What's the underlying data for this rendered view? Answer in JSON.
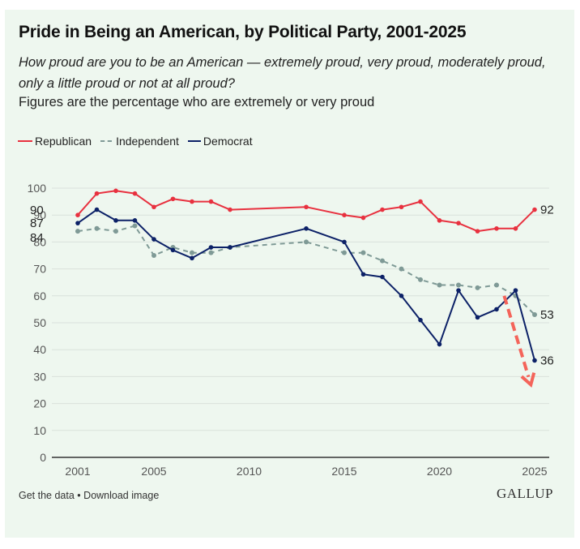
{
  "header": {
    "title": "Pride in Being an American, by Political Party, 2001-2025",
    "question": "How proud are you to be an American — extremely proud, very proud, moderately proud, only a little proud or not at all proud?",
    "note": "Figures are the percentage who are extremely or very proud"
  },
  "legend": {
    "items": [
      {
        "label": "Republican",
        "color": "#e8313f",
        "style": "solid"
      },
      {
        "label": "Independent",
        "color": "#7f9a96",
        "style": "dashed"
      },
      {
        "label": "Democrat",
        "color": "#0c2167",
        "style": "solid"
      }
    ]
  },
  "footer": {
    "get_data": "Get the data",
    "separator": "•",
    "download": "Download image",
    "logo": "GALLUP"
  },
  "colors": {
    "background": "#eef7ef",
    "grid": "#d9e2dc",
    "axis": "#333333",
    "annotation_arrow": "#f4645a"
  },
  "chart_data": {
    "type": "line",
    "title": "Pride in Being an American, by Political Party, 2001-2025",
    "xlabel": "",
    "ylabel": "",
    "xlim": [
      2001,
      2025
    ],
    "ylim": [
      0,
      100
    ],
    "grid": true,
    "legend_position": "top-left",
    "x_ticks": [
      2001,
      2005,
      2010,
      2015,
      2020,
      2025
    ],
    "y_ticks": [
      0,
      10,
      20,
      30,
      40,
      50,
      60,
      70,
      80,
      90,
      100
    ],
    "series": [
      {
        "name": "Republican",
        "color": "#e8313f",
        "dashed": false,
        "points": [
          [
            2001,
            90
          ],
          [
            2002,
            98
          ],
          [
            2003,
            99
          ],
          [
            2004,
            98
          ],
          [
            2005,
            93
          ],
          [
            2006,
            96
          ],
          [
            2007,
            95
          ],
          [
            2008,
            95
          ],
          [
            2009,
            92
          ],
          [
            2013,
            93
          ],
          [
            2015,
            90
          ],
          [
            2016,
            89
          ],
          [
            2017,
            92
          ],
          [
            2018,
            93
          ],
          [
            2019,
            95
          ],
          [
            2020,
            88
          ],
          [
            2021,
            87
          ],
          [
            2022,
            84
          ],
          [
            2023,
            85
          ],
          [
            2024,
            85
          ],
          [
            2025,
            92
          ]
        ],
        "start_label": "90",
        "end_label": "92"
      },
      {
        "name": "Independent",
        "color": "#7f9a96",
        "dashed": true,
        "points": [
          [
            2001,
            84
          ],
          [
            2002,
            85
          ],
          [
            2003,
            84
          ],
          [
            2004,
            86
          ],
          [
            2005,
            75
          ],
          [
            2006,
            78
          ],
          [
            2007,
            76
          ],
          [
            2008,
            76
          ],
          [
            2009,
            78
          ],
          [
            2013,
            80
          ],
          [
            2015,
            76
          ],
          [
            2016,
            76
          ],
          [
            2017,
            73
          ],
          [
            2018,
            70
          ],
          [
            2019,
            66
          ],
          [
            2020,
            64
          ],
          [
            2021,
            64
          ],
          [
            2022,
            63
          ],
          [
            2023,
            64
          ],
          [
            2024,
            60
          ],
          [
            2025,
            53
          ]
        ],
        "start_label": "84",
        "end_label": "53"
      },
      {
        "name": "Democrat",
        "color": "#0c2167",
        "dashed": false,
        "points": [
          [
            2001,
            87
          ],
          [
            2002,
            92
          ],
          [
            2003,
            88
          ],
          [
            2004,
            88
          ],
          [
            2005,
            81
          ],
          [
            2006,
            77
          ],
          [
            2007,
            74
          ],
          [
            2008,
            78
          ],
          [
            2009,
            78
          ],
          [
            2013,
            85
          ],
          [
            2015,
            80
          ],
          [
            2016,
            68
          ],
          [
            2017,
            67
          ],
          [
            2018,
            60
          ],
          [
            2019,
            51
          ],
          [
            2020,
            42
          ],
          [
            2021,
            62
          ],
          [
            2022,
            52
          ],
          [
            2023,
            55
          ],
          [
            2024,
            62
          ],
          [
            2025,
            36
          ]
        ],
        "start_label": "87",
        "end_label": "36"
      }
    ],
    "annotations": [
      {
        "type": "dashed-arrow",
        "color": "#f4645a",
        "from": [
          2023.4,
          60
        ],
        "to": [
          2024.8,
          27
        ],
        "meaning": "downward trend emphasis"
      }
    ]
  }
}
